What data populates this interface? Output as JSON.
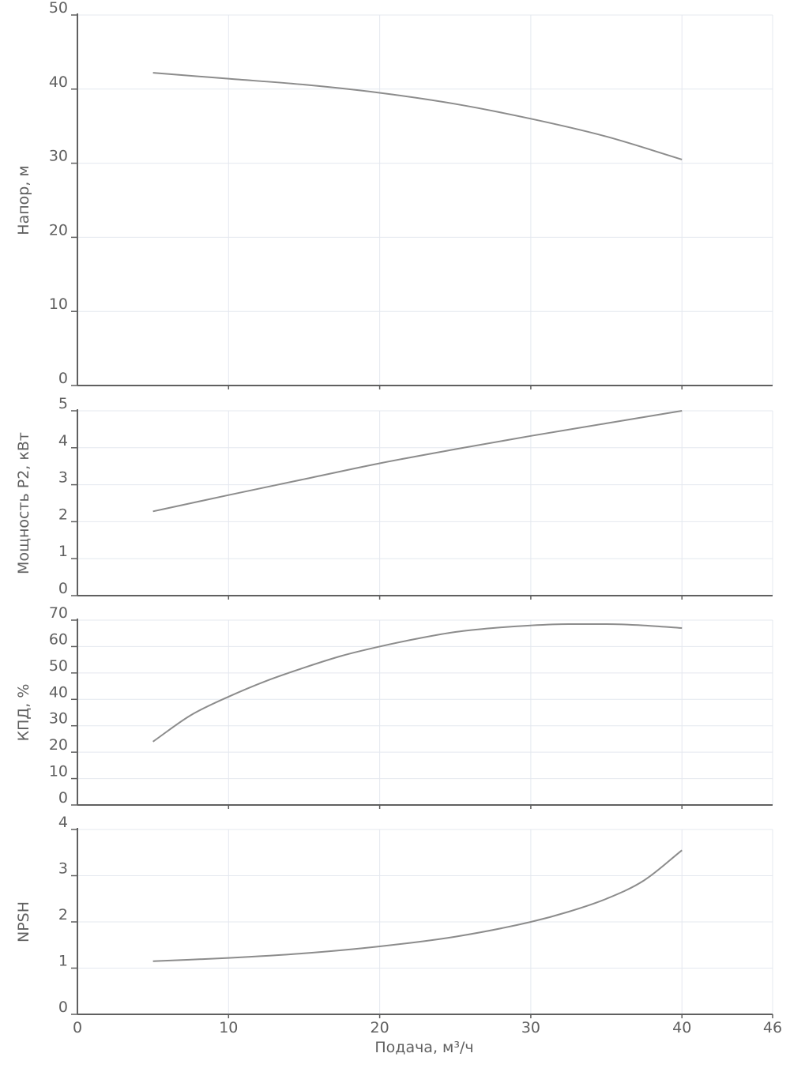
{
  "chart_data": {
    "type": "line",
    "xlabel": "Подача, м³/ч",
    "xlim": [
      0,
      46
    ],
    "xticks": [
      0,
      10,
      20,
      30,
      40,
      46
    ],
    "panels": [
      {
        "id": "head",
        "ylabel": "Напор, м",
        "ylim": [
          0,
          50
        ],
        "yticks": [
          0,
          10,
          20,
          30,
          40,
          50
        ],
        "series": [
          {
            "name": "Напор",
            "x": [
              5,
              10,
              15,
              20,
              25,
              30,
              35,
              40
            ],
            "y": [
              42.2,
              41.4,
              40.6,
              39.5,
              38.0,
              36.0,
              33.6,
              30.5
            ]
          }
        ]
      },
      {
        "id": "power",
        "ylabel": "Мощность P2, кВт",
        "ylim": [
          0,
          5
        ],
        "yticks": [
          0,
          1,
          2,
          3,
          4,
          5
        ],
        "series": [
          {
            "name": "Мощность P2",
            "x": [
              5,
              10,
              15,
              20,
              25,
              30,
              35,
              40
            ],
            "y": [
              2.28,
              2.72,
              3.15,
              3.58,
              3.96,
              4.32,
              4.66,
              5.0
            ]
          }
        ]
      },
      {
        "id": "efficiency",
        "ylabel": "КПД, %",
        "ylim": [
          0,
          70
        ],
        "yticks": [
          0,
          10,
          20,
          30,
          40,
          50,
          60,
          70
        ],
        "series": [
          {
            "name": "КПД",
            "x": [
              5,
              7.5,
              10,
              12.5,
              15,
              17.5,
              20,
              22.5,
              25,
              27.5,
              30,
              32.5,
              35,
              37.5,
              40
            ],
            "y": [
              24,
              34,
              41,
              47,
              52,
              56.5,
              60,
              63,
              65.5,
              67,
              68,
              68.5,
              68.5,
              68,
              67
            ]
          }
        ]
      },
      {
        "id": "npsh",
        "ylabel": "NPSH",
        "ylim": [
          0,
          4
        ],
        "yticks": [
          0,
          1,
          2,
          3,
          4
        ],
        "series": [
          {
            "name": "NPSH",
            "x": [
              5,
              10,
              15,
              20,
              25,
              30,
              32.5,
              35,
              37.5,
              40
            ],
            "y": [
              1.15,
              1.22,
              1.32,
              1.47,
              1.68,
              2.0,
              2.22,
              2.5,
              2.9,
              3.55
            ]
          }
        ]
      }
    ]
  }
}
